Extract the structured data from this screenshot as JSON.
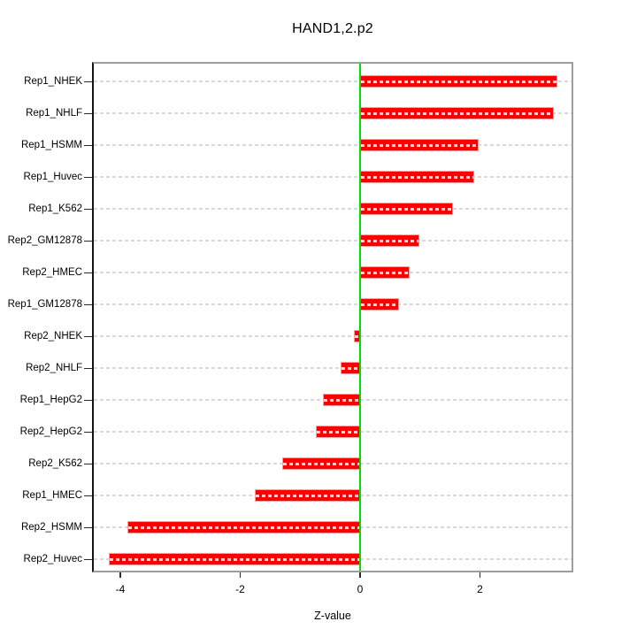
{
  "chart_data": {
    "type": "bar",
    "orientation": "horizontal",
    "title": "HAND1,2.p2",
    "xlabel": "Z-value",
    "ylabel": "",
    "categories": [
      "Rep1_NHEK",
      "Rep1_NHLF",
      "Rep1_HSMM",
      "Rep1_Huvec",
      "Rep1_K562",
      "Rep2_GM12878",
      "Rep2_HMEC",
      "Rep1_GM12878",
      "Rep2_NHEK",
      "Rep2_NHLF",
      "Rep1_HepG2",
      "Rep2_HepG2",
      "Rep2_K562",
      "Rep1_HMEC",
      "Rep2_HSMM",
      "Rep2_Huvec"
    ],
    "values": [
      3.26,
      3.2,
      1.95,
      1.88,
      1.52,
      0.96,
      0.8,
      0.62,
      -0.09,
      -0.31,
      -0.6,
      -0.72,
      -1.28,
      -1.74,
      -3.87,
      -4.18
    ],
    "xticks": [
      -4,
      -2,
      0,
      2
    ],
    "xlim": [
      -4.47,
      3.56
    ],
    "grid": "horizontal dashed line per category",
    "legend": "none",
    "colors": {
      "bar": "#fa0000",
      "bar_border": "#ff9e9e",
      "bar_inner_dash": "#ffffff",
      "zero_line": "#00dd00",
      "gridline": "#d9d9d9",
      "box_border": "#9e9e9e",
      "box_left_border": "#141414",
      "tick": "#2a2a2a",
      "text": "#000000",
      "background": "#ffffff"
    }
  }
}
